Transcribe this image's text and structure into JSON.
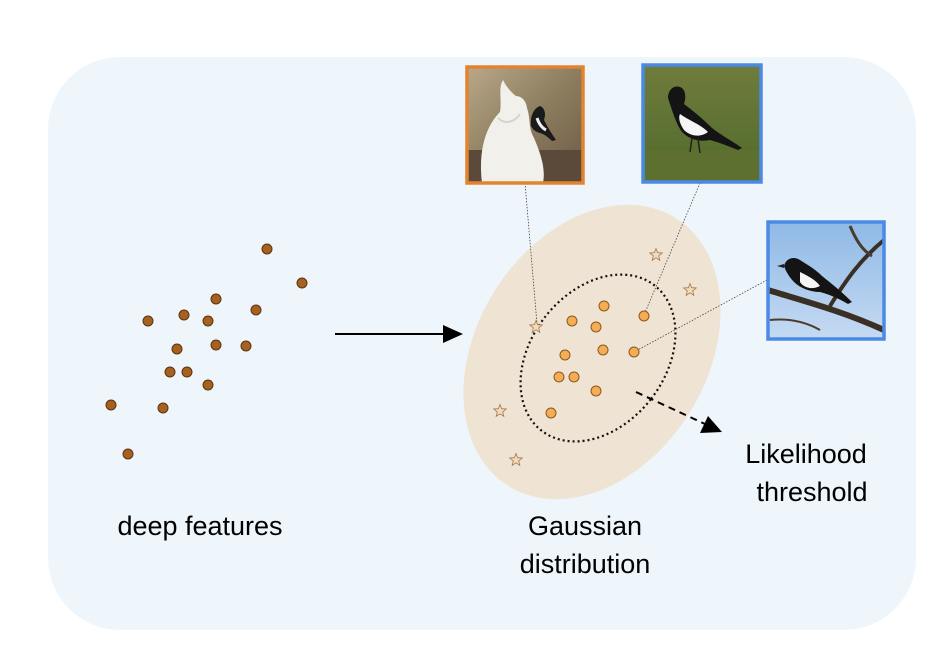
{
  "labels": {
    "deep_features": "deep features",
    "gaussian_line1": "Gaussian",
    "gaussian_line2": "distribution",
    "likelihood_line1": "Likelihood",
    "likelihood_line2": "threshold"
  },
  "thumbnails": [
    {
      "subject": "white fox with magpie",
      "border_color": "#e4832e"
    },
    {
      "subject": "magpie on grass",
      "border_color": "#4a8ae4"
    },
    {
      "subject": "magpie on branch",
      "border_color": "#4a8ae4"
    }
  ],
  "colors": {
    "panel_background": "#eef6fc",
    "feature_point": "#a6601f",
    "gaussian_ellipse": "#efe3d3",
    "inlier_point": "#f4ad55",
    "outlier_star": "#f8d9b6",
    "arrow": "#000000"
  }
}
